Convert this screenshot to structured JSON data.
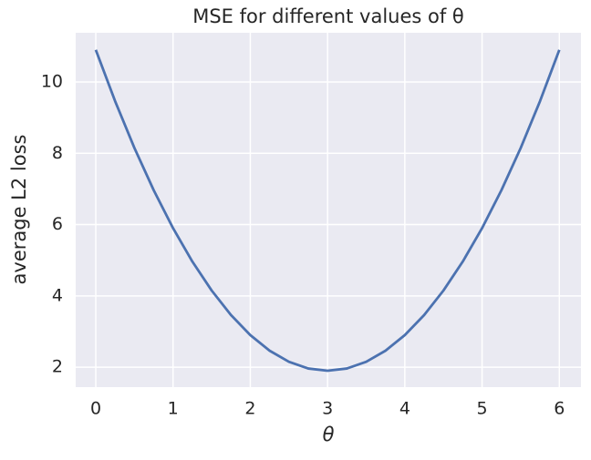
{
  "chart_data": {
    "type": "line",
    "title": "MSE for different values of θ",
    "x_label": "θ",
    "y_label": "average L2 loss",
    "x": [
      0,
      0.25,
      0.5,
      0.75,
      1,
      1.25,
      1.5,
      1.75,
      2,
      2.25,
      2.5,
      2.75,
      3,
      3.25,
      3.5,
      3.75,
      4,
      4.25,
      4.5,
      4.75,
      5,
      5.25,
      5.5,
      5.75,
      6
    ],
    "series": [
      {
        "color": "#4c72b0",
        "values": [
          10.9,
          9.4625,
          8.15,
          6.9625,
          5.9,
          4.9625,
          4.15,
          3.4625,
          2.9,
          2.4625,
          2.15,
          1.9625,
          1.9,
          1.9625,
          2.15,
          2.4625,
          2.9,
          3.4625,
          4.15,
          4.9625,
          5.9,
          6.9625,
          8.15,
          9.4625,
          10.9
        ]
      }
    ],
    "xlim": [
      -0.26,
      6.28
    ],
    "ylim": [
      1.44,
      11.38
    ],
    "xticks": [
      0,
      1,
      2,
      3,
      4,
      5,
      6
    ],
    "yticks": [
      2,
      4,
      6,
      8,
      10
    ],
    "grid": true
  }
}
